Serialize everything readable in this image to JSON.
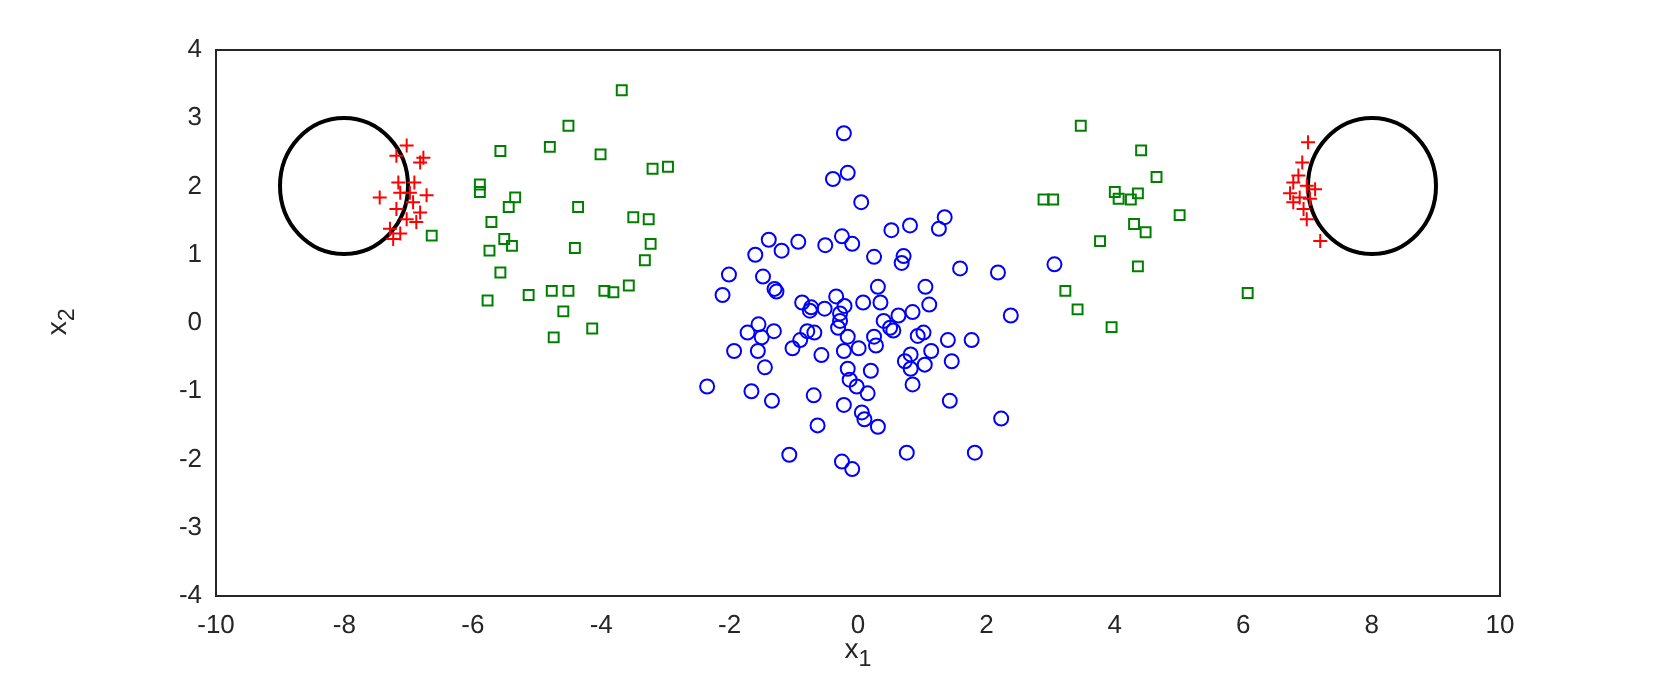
{
  "chart_data": {
    "type": "scatter",
    "xlabel": "x$_{1}$",
    "ylabel": "x$_{2}$",
    "xlim": [
      -10,
      10
    ],
    "ylim": [
      -4,
      4
    ],
    "xticks": [
      -10,
      -8,
      -6,
      -4,
      -2,
      0,
      2,
      4,
      6,
      8,
      10
    ],
    "yticks": [
      -4,
      -3,
      -2,
      -1,
      0,
      1,
      2,
      3,
      4
    ],
    "grid": false,
    "legend": false,
    "series": [
      {
        "type": "scatter",
        "marker": "circle",
        "color": "#0000ff",
        "x": [
          -0.22,
          -0.39,
          -0.16,
          0.05,
          1.35,
          1.26,
          0.81,
          0.52,
          -1.39,
          -0.93,
          -1.19,
          -1.6,
          -0.51,
          -0.25,
          -0.09,
          0.25,
          0.71,
          0.68,
          1.59,
          2.18,
          3.06,
          -2.01,
          -1.48,
          -2.11,
          -1.3,
          -1.27,
          -0.87,
          -0.73,
          -0.75,
          -0.52,
          -0.34,
          -0.21,
          -0.28,
          0.08,
          0.31,
          0.35,
          1.05,
          1.11,
          0.85,
          0.63,
          2.38,
          -1.72,
          -1.55,
          -1.31,
          -1.5,
          -0.79,
          -0.68,
          -0.9,
          -1.02,
          -0.28,
          -0.31,
          0.4,
          0.5,
          0.55,
          -0.16,
          0.25,
          0.28,
          0.93,
          1.02,
          1.4,
          1.77,
          -1.93,
          -1.56,
          -1.45,
          -0.57,
          -0.22,
          0.01,
          0.82,
          1.14,
          0.73,
          1.04,
          1.46,
          0.82,
          -0.16,
          0.2,
          -2.35,
          -1.66,
          -1.34,
          -0.69,
          -0.13,
          -0.02,
          0.15,
          0.85,
          -0.22,
          0.06,
          0.1,
          0.31,
          1.43,
          2.23,
          -0.63,
          -1.07,
          -0.25,
          -0.09,
          0.76,
          1.82
        ],
        "values": [
          2.78,
          2.11,
          2.2,
          1.77,
          1.55,
          1.38,
          1.43,
          1.36,
          1.22,
          1.19,
          1.06,
          1.0,
          1.14,
          1.27,
          1.16,
          0.97,
          0.98,
          0.88,
          0.8,
          0.74,
          0.86,
          0.71,
          0.68,
          0.41,
          0.5,
          0.46,
          0.3,
          0.23,
          0.18,
          0.21,
          0.39,
          0.25,
          0.14,
          0.3,
          0.53,
          0.3,
          0.53,
          0.27,
          0.16,
          0.11,
          0.11,
          -0.14,
          -0.02,
          -0.12,
          -0.21,
          -0.12,
          -0.14,
          -0.25,
          -0.37,
          0.03,
          -0.07,
          0.03,
          -0.07,
          -0.11,
          -0.2,
          -0.2,
          -0.33,
          -0.19,
          -0.14,
          -0.25,
          -0.25,
          -0.41,
          -0.41,
          -0.65,
          -0.47,
          -0.41,
          -0.37,
          -0.46,
          -0.41,
          -0.56,
          -0.61,
          -0.56,
          -0.67,
          -0.67,
          -0.7,
          -0.93,
          -1.0,
          -1.14,
          -1.06,
          -0.83,
          -0.93,
          -1.03,
          -0.9,
          -1.2,
          -1.31,
          -1.41,
          -1.52,
          -1.14,
          -1.4,
          -1.5,
          -1.93,
          -2.03,
          -2.14,
          -1.9,
          -1.9
        ]
      },
      {
        "type": "scatter",
        "marker": "square",
        "color": "#008000",
        "x": [
          -3.68,
          -4.51,
          -5.57,
          -4.8,
          -4.01,
          -3.2,
          -2.96,
          -5.89,
          -5.89,
          -5.34,
          -5.44,
          -4.36,
          -5.71,
          -3.5,
          -3.26,
          -5.51,
          -5.39,
          -5.74,
          -4.41,
          -3.23,
          -6.64,
          -3.32,
          -5.57,
          -5.77,
          -5.13,
          -4.77,
          -4.51,
          -3.95,
          -3.81,
          -3.57,
          -4.59,
          -4.14,
          -4.74,
          3.47,
          4.41,
          4.65,
          2.89,
          3.04,
          4.0,
          4.06,
          4.36,
          4.25,
          5.01,
          4.3,
          4.48,
          3.77,
          4.36,
          3.23,
          3.42,
          3.95,
          6.07
        ],
        "values": [
          3.41,
          2.89,
          2.52,
          2.58,
          2.47,
          2.26,
          2.29,
          2.03,
          1.92,
          1.84,
          1.7,
          1.7,
          1.48,
          1.55,
          1.52,
          1.23,
          1.13,
          1.06,
          1.1,
          1.16,
          1.28,
          0.92,
          0.74,
          0.33,
          0.41,
          0.47,
          0.47,
          0.47,
          0.45,
          0.55,
          0.17,
          -0.08,
          -0.21,
          2.89,
          2.53,
          2.14,
          1.81,
          1.81,
          1.92,
          1.82,
          1.9,
          1.81,
          1.58,
          1.45,
          1.33,
          1.2,
          0.83,
          0.47,
          0.2,
          -0.06,
          0.44
        ]
      },
      {
        "type": "scatter",
        "marker": "cross",
        "color": "#ff0000",
        "x": [
          -7.03,
          -7.19,
          -6.77,
          -6.82,
          -7.16,
          -6.91,
          -7.45,
          -7.13,
          -6.98,
          -6.72,
          -6.93,
          -7.19,
          -6.82,
          -7.03,
          -6.88,
          -7.29,
          -7.13,
          -7.24,
          7.01,
          6.92,
          6.86,
          6.78,
          6.99,
          7.12,
          6.73,
          6.88,
          7.04,
          6.78,
          6.94,
          6.99,
          7.2
        ],
        "values": [
          2.6,
          2.45,
          2.42,
          2.35,
          2.06,
          2.06,
          1.84,
          1.91,
          1.91,
          1.87,
          1.77,
          1.67,
          1.62,
          1.52,
          1.48,
          1.38,
          1.31,
          1.23,
          2.65,
          2.35,
          2.16,
          2.06,
          2.01,
          1.96,
          1.9,
          1.84,
          1.82,
          1.77,
          1.67,
          1.52,
          1.2
        ]
      }
    ]
  }
}
